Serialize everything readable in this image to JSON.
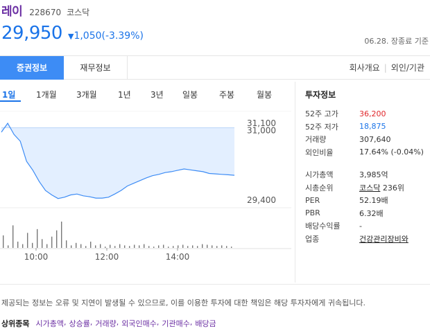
{
  "header": {
    "name": "레이",
    "code": "228670",
    "market": "코스닥",
    "price": "29,950",
    "change_arrow": "▼",
    "change": "1,050(-3.39%)",
    "date_note": "06.28. 장종료 기준"
  },
  "tabs": {
    "active": "증권정보",
    "second": "재무정보",
    "right": [
      "회사개요",
      "외인/기관"
    ]
  },
  "periods": [
    "1일",
    "1개월",
    "3개월",
    "1년",
    "3년",
    "일봉",
    "주봉",
    "월봉"
  ],
  "chart_data": {
    "type": "area",
    "y_ticks": [
      "31,100",
      "31,000",
      "29,400"
    ],
    "x_ticks": [
      "10:00",
      "12:00",
      "14:00"
    ],
    "base_price": 31000,
    "price_series": [
      30900,
      31100,
      30850,
      30700,
      30250,
      30050,
      29800,
      29600,
      29500,
      29420,
      29450,
      29500,
      29520,
      29480,
      29460,
      29430,
      29430,
      29450,
      29520,
      29600,
      29700,
      29760,
      29820,
      29880,
      29930,
      29960,
      30000,
      30020,
      30050,
      30080,
      30060,
      30040,
      30020,
      29980,
      29970,
      29960,
      29950,
      29940
    ],
    "volume_series": [
      20,
      4,
      36,
      10,
      6,
      24,
      8,
      30,
      14,
      6,
      18,
      28,
      42,
      12,
      4,
      8,
      6,
      3,
      10,
      4,
      6,
      2,
      5,
      3,
      6,
      4,
      3,
      5,
      4,
      6,
      3,
      2,
      4,
      5,
      2,
      3,
      4,
      5,
      3,
      4,
      3,
      6,
      5,
      4,
      3,
      4,
      3,
      2
    ]
  },
  "info": {
    "title": "투자정보",
    "rows1": [
      {
        "label": "52주 고가",
        "value": "36,200",
        "color": "red"
      },
      {
        "label": "52주 저가",
        "value": "18,875",
        "color": "blue"
      },
      {
        "label": "거래량",
        "value": "307,640",
        "color": ""
      },
      {
        "label": "외인비율",
        "value": "17.64% (-0.04%)",
        "color": ""
      }
    ],
    "rows2": [
      {
        "label": "시가총액",
        "value": "3,985억"
      },
      {
        "label": "시총순위",
        "value_link": "코스닥",
        "value": " 236위"
      },
      {
        "label": "PER",
        "value": "52.19배"
      },
      {
        "label": "PBR",
        "value": "6.32배"
      },
      {
        "label": "배당수익률",
        "value": "-"
      },
      {
        "label": "업종",
        "value": "건강관리장비와"
      }
    ]
  },
  "notice": "제공되는 정보는 오류 및 지연이 발생될 수 있으므로, 이를 이용한 투자에 대한 책임은 해당 투자자에게 귀속됩니다.",
  "bottom": {
    "label": "상위종목",
    "links": [
      "시가총액",
      "상승률",
      "거래량",
      "외국인매수",
      "기관매수",
      "배당금"
    ]
  }
}
